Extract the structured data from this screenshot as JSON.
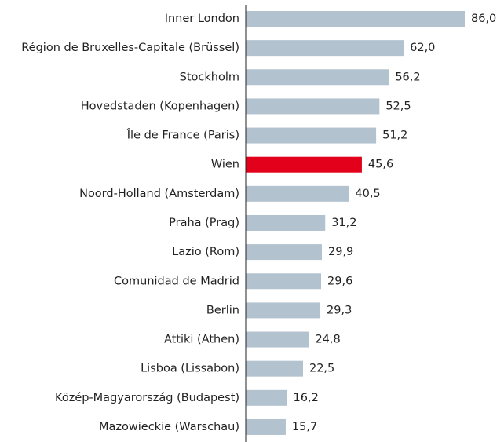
{
  "chart_data": {
    "type": "hbar",
    "categories": [
      "Inner London",
      "Région de Bruxelles-Capitale (Brüssel)",
      "Stockholm",
      "Hovedstaden (Kopenhagen)",
      "Île de France (Paris)",
      "Wien",
      "Noord-Holland (Amsterdam)",
      "Praha (Prag)",
      "Lazio (Rom)",
      "Comunidad de Madrid",
      "Berlin",
      "Attiki (Athen)",
      "Lisboa (Lissabon)",
      "Közép-Magyarország (Budapest)",
      "Mazowieckie (Warschau)"
    ],
    "values": [
      86.0,
      62.0,
      56.2,
      52.5,
      51.2,
      45.6,
      40.5,
      31.2,
      29.9,
      29.6,
      29.3,
      24.8,
      22.5,
      16.2,
      15.7
    ],
    "value_labels": [
      "86,0",
      "62,0",
      "56,2",
      "52,5",
      "51,2",
      "45,6",
      "40,5",
      "31,2",
      "29,9",
      "29,6",
      "29,3",
      "24,8",
      "22,5",
      "16,2",
      "15,7"
    ],
    "colors": [
      "#b3c2cf",
      "#b3c2cf",
      "#b3c2cf",
      "#b3c2cf",
      "#b3c2cf",
      "#e2001a",
      "#b3c2cf",
      "#b3c2cf",
      "#b3c2cf",
      "#b3c2cf",
      "#b3c2cf",
      "#b3c2cf",
      "#b3c2cf",
      "#b3c2cf",
      "#b3c2cf"
    ]
  }
}
